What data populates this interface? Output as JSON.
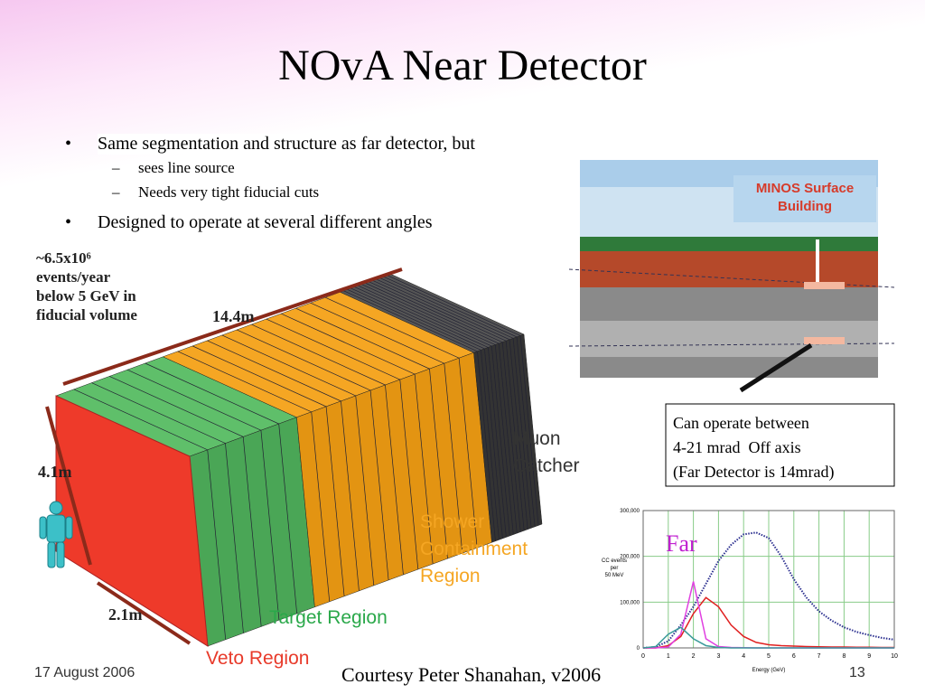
{
  "title": "NOvA Near Detector",
  "bullets": [
    {
      "text": "Same segmentation and structure as far detector, but",
      "sub": [
        "sees line source",
        "Needs very tight fiducial cuts"
      ]
    },
    {
      "text": "Designed to operate at several different angles",
      "sub": []
    }
  ],
  "detector": {
    "events": [
      "~6.5x10⁶",
      "events/year",
      "below 5 GeV in",
      "fiducial volume"
    ],
    "length": "14.4m",
    "height": "4.1m",
    "width": "2.1m",
    "muon": [
      "Muon",
      "Catcher"
    ],
    "shower": [
      "Shower",
      "Containment",
      "Region"
    ],
    "target": "Target Region",
    "veto": "Veto Region"
  },
  "minos": [
    "MINOS Surface",
    "Building"
  ],
  "note": [
    "Can operate between",
    "4-21 mrad  Off axis",
    "(Far Detector is 14mrad)"
  ],
  "chart_data": {
    "type": "line",
    "annotation": "Far",
    "y_label": [
      "CC events",
      "per",
      "50 MeV"
    ],
    "x_label": "Energy (GeV)",
    "x": [
      0,
      0.5,
      1,
      1.5,
      2,
      2.5,
      3,
      3.5,
      4,
      4.5,
      5,
      5.5,
      6,
      6.5,
      7,
      7.5,
      8,
      8.5,
      9,
      9.5,
      10
    ],
    "series": [
      {
        "color": "#2b2f8f",
        "dashed": true,
        "values": [
          0,
          2000,
          15000,
          50000,
          90000,
          140000,
          190000,
          225000,
          248000,
          252000,
          240000,
          200000,
          150000,
          110000,
          80000,
          60000,
          45000,
          35000,
          28000,
          22000,
          18000
        ]
      },
      {
        "color": "#e02020",
        "values": [
          0,
          0,
          5000,
          25000,
          75000,
          110000,
          90000,
          50000,
          25000,
          12000,
          7000,
          5000,
          4000,
          3000,
          2500,
          2000,
          2000,
          1500,
          1500,
          1000,
          1000
        ]
      },
      {
        "color": "#e040e0",
        "values": [
          0,
          0,
          2000,
          30000,
          145000,
          20000,
          3000,
          1000,
          500,
          0,
          0,
          0,
          0,
          0,
          0,
          0,
          0,
          0,
          0,
          0,
          0
        ]
      },
      {
        "color": "#3a9a9a",
        "values": [
          0,
          3000,
          30000,
          45000,
          20000,
          5000,
          1000,
          0,
          0,
          0,
          0,
          0,
          0,
          0,
          0,
          0,
          0,
          0,
          0,
          0,
          0
        ]
      }
    ],
    "xlim": [
      0,
      10
    ],
    "ylim": [
      0,
      300000
    ],
    "xticks": [
      0,
      1,
      2,
      3,
      4,
      5,
      6,
      7,
      8,
      9,
      10
    ],
    "yticks": [
      0,
      {
        "value": 100000,
        "label": "100,000"
      },
      {
        "value": 200000,
        "label": "200,000"
      },
      {
        "value": 300000,
        "label": "300,000"
      }
    ],
    "grid": true
  },
  "footer": {
    "date": "17 August 2006",
    "credit": "Courtesy Peter Shanahan, v2006",
    "page": "13"
  }
}
